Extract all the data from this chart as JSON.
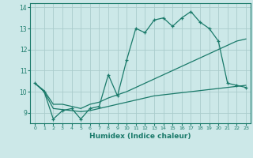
{
  "title": "",
  "xlabel": "Humidex (Indice chaleur)",
  "bg_color": "#cce8e8",
  "grid_color": "#aacccc",
  "line_color": "#1a7a6a",
  "xlim": [
    -0.5,
    23.5
  ],
  "ylim": [
    8.5,
    14.2
  ],
  "yticks": [
    9,
    10,
    11,
    12,
    13,
    14
  ],
  "xticks": [
    0,
    1,
    2,
    3,
    4,
    5,
    6,
    7,
    8,
    9,
    10,
    11,
    12,
    13,
    14,
    15,
    16,
    17,
    18,
    19,
    20,
    21,
    22,
    23
  ],
  "line1_x": [
    0,
    1,
    2,
    3,
    4,
    5,
    6,
    7,
    8,
    9,
    10,
    11,
    12,
    13,
    14,
    15,
    16,
    17,
    18,
    19,
    20,
    21,
    22,
    23
  ],
  "line1_y": [
    10.4,
    10.0,
    8.7,
    9.1,
    9.2,
    8.7,
    9.2,
    9.3,
    10.8,
    9.8,
    11.5,
    13.0,
    12.8,
    13.4,
    13.5,
    13.1,
    13.5,
    13.8,
    13.3,
    13.0,
    12.4,
    10.4,
    10.3,
    10.2
  ],
  "line2_x": [
    0,
    1,
    2,
    3,
    4,
    5,
    6,
    7,
    8,
    9,
    10,
    11,
    12,
    13,
    14,
    15,
    16,
    17,
    18,
    19,
    20,
    21,
    22,
    23
  ],
  "line2_y": [
    10.4,
    10.05,
    9.4,
    9.4,
    9.3,
    9.2,
    9.4,
    9.5,
    9.7,
    9.85,
    10.0,
    10.2,
    10.4,
    10.6,
    10.8,
    11.0,
    11.2,
    11.4,
    11.6,
    11.8,
    12.0,
    12.2,
    12.4,
    12.5
  ],
  "line3_x": [
    0,
    1,
    2,
    3,
    4,
    5,
    6,
    7,
    8,
    9,
    10,
    11,
    12,
    13,
    14,
    15,
    16,
    17,
    18,
    19,
    20,
    21,
    22,
    23
  ],
  "line3_y": [
    10.4,
    10.0,
    9.2,
    9.15,
    9.1,
    9.05,
    9.1,
    9.2,
    9.3,
    9.4,
    9.5,
    9.6,
    9.7,
    9.8,
    9.85,
    9.9,
    9.95,
    10.0,
    10.05,
    10.1,
    10.15,
    10.2,
    10.25,
    10.3
  ]
}
